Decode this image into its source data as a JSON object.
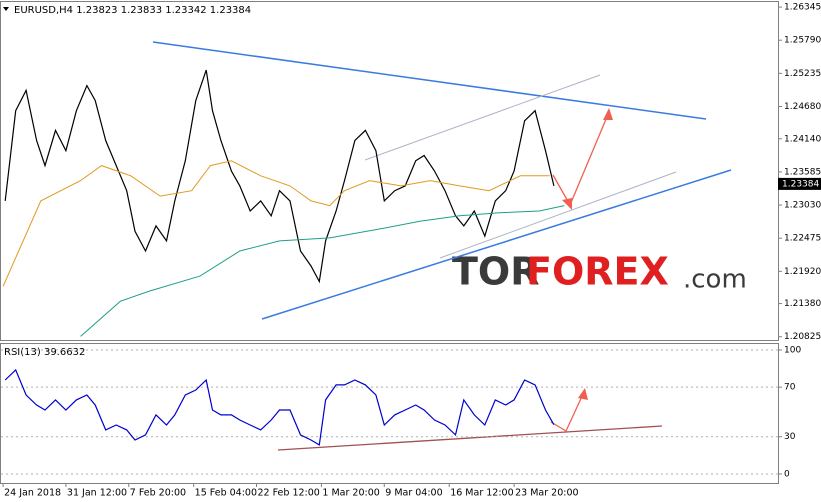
{
  "chart_data": [
    {
      "type": "line",
      "title": "EURUSD,H4  1.23823 1.23833 1.23342 1.23384",
      "last_price": 1.23384,
      "xlim": [
        -1,
        370
      ],
      "ylim": [
        1.2077,
        1.2643
      ],
      "yticks": [
        1.26345,
        {
          "value": 1.2579,
          "label": "1.25790"
        },
        1.25235,
        {
          "value": 1.2468,
          "label": "1.24680"
        },
        {
          "value": 1.2414,
          "label": "1.24140"
        },
        1.23585,
        {
          "value": 1.2303,
          "label": "1.23030"
        },
        1.22475,
        {
          "value": 1.2192,
          "label": "1.21920"
        },
        {
          "value": 1.2138,
          "label": "1.21380"
        },
        1.20825
      ],
      "series": [
        {
          "color": "#000000",
          "x": [
            1,
            6,
            11,
            16,
            20,
            25,
            30,
            35,
            40,
            44,
            49,
            54,
            59,
            63,
            68,
            73,
            78,
            82,
            87,
            92,
            97,
            100,
            104,
            109,
            113,
            118,
            123,
            128,
            132,
            137,
            142,
            147,
            151,
            154,
            159,
            163,
            168,
            173,
            178,
            182,
            187,
            192,
            197,
            201,
            206,
            211,
            216,
            220,
            225,
            230,
            235,
            240,
            244,
            249,
            254,
            259,
            263
          ],
          "values": [
            1.231,
            1.2461,
            1.2495,
            1.2411,
            1.2369,
            1.2428,
            1.2394,
            1.2461,
            1.2503,
            1.2478,
            1.2411,
            1.2369,
            1.2327,
            1.2259,
            1.2226,
            1.2268,
            1.2243,
            1.231,
            1.2377,
            1.2478,
            1.2529,
            1.2461,
            1.2411,
            1.236,
            1.2335,
            1.2293,
            1.231,
            1.2285,
            1.2327,
            1.231,
            1.2226,
            1.2201,
            1.2175,
            1.2243,
            1.2293,
            1.2344,
            1.2411,
            1.2428,
            1.2394,
            1.231,
            1.2327,
            1.2335,
            1.2377,
            1.2386,
            1.236,
            1.2327,
            1.2285,
            1.2268,
            1.2293,
            1.2251,
            1.231,
            1.2327,
            1.236,
            1.2444,
            1.2461,
            1.2394,
            1.2335
          ]
        },
        {
          "color": "#e09a1e",
          "x": [
            0,
            18,
            37,
            47,
            61,
            75,
            90,
            99,
            109,
            123,
            137,
            147,
            156,
            163,
            175,
            190,
            204,
            218,
            232,
            247,
            261
          ],
          "values": [
            1.2167,
            1.231,
            1.2344,
            1.2369,
            1.2352,
            1.2318,
            1.2327,
            1.2369,
            1.2377,
            1.2352,
            1.2335,
            1.231,
            1.2302,
            1.2327,
            1.2344,
            1.2335,
            1.2344,
            1.2335,
            1.2327,
            1.2352,
            1.2352
          ]
        },
        {
          "color": "#1f9e89",
          "x": [
            37,
            56,
            70,
            94,
            113,
            132,
            156,
            180,
            199,
            218,
            237,
            256,
            268
          ],
          "values": [
            1.2083,
            1.2142,
            1.2159,
            1.2184,
            1.2226,
            1.2243,
            1.2248,
            1.2263,
            1.2276,
            1.2285,
            1.229,
            1.2293,
            1.2302
          ]
        }
      ],
      "watermark": [
        "TOR",
        "FOREX",
        ".com"
      ]
    },
    {
      "type": "line",
      "title": "RSI(13) 39.6632",
      "xlim": [
        -1,
        370
      ],
      "ylim": [
        -7.3,
        104.8
      ],
      "yticks": [
        100,
        70,
        30,
        0
      ],
      "xticks": [
        {
          "value": 0,
          "label": "24 Jan 2018"
        },
        {
          "value": 30,
          "label": "31 Jan 12:00"
        },
        {
          "value": 60,
          "label": "7 Feb 20:00"
        },
        {
          "value": 91,
          "label": "15 Feb 04:00"
        },
        {
          "value": 121,
          "label": "22 Feb 12:00"
        },
        {
          "value": 152,
          "label": "1 Mar 20:00"
        },
        {
          "value": 182,
          "label": "9 Mar 04:00"
        },
        {
          "value": 213,
          "label": "16 Mar 12:00"
        },
        {
          "value": 244,
          "label": "23 Mar 20:00"
        }
      ],
      "series": [
        {
          "color": "#0000d0",
          "x": [
            1,
            6,
            11,
            16,
            20,
            25,
            30,
            35,
            40,
            44,
            49,
            54,
            59,
            63,
            68,
            73,
            78,
            82,
            87,
            92,
            97,
            100,
            104,
            109,
            113,
            118,
            123,
            128,
            132,
            137,
            142,
            147,
            151,
            154,
            159,
            163,
            168,
            173,
            178,
            182,
            187,
            192,
            197,
            201,
            206,
            211,
            216,
            220,
            225,
            230,
            235,
            240,
            244,
            249,
            254,
            259,
            263
          ],
          "values": [
            75.8,
            83.9,
            63.7,
            55.6,
            51.6,
            59.7,
            51.6,
            59.7,
            63.7,
            55.6,
            35.5,
            39.5,
            35.5,
            27.4,
            31.5,
            47.6,
            39.5,
            47.6,
            63.7,
            67.7,
            75.8,
            51.6,
            47.6,
            47.6,
            43.5,
            39.5,
            35.5,
            43.5,
            51.6,
            51.6,
            31.5,
            27.4,
            23.4,
            59.7,
            71.8,
            71.8,
            75.8,
            71.8,
            63.7,
            39.5,
            47.6,
            51.6,
            55.6,
            51.6,
            43.5,
            39.5,
            31.5,
            59.7,
            47.6,
            39.5,
            59.7,
            55.6,
            59.7,
            75.8,
            71.8,
            51.6,
            39.7
          ]
        }
      ]
    }
  ]
}
